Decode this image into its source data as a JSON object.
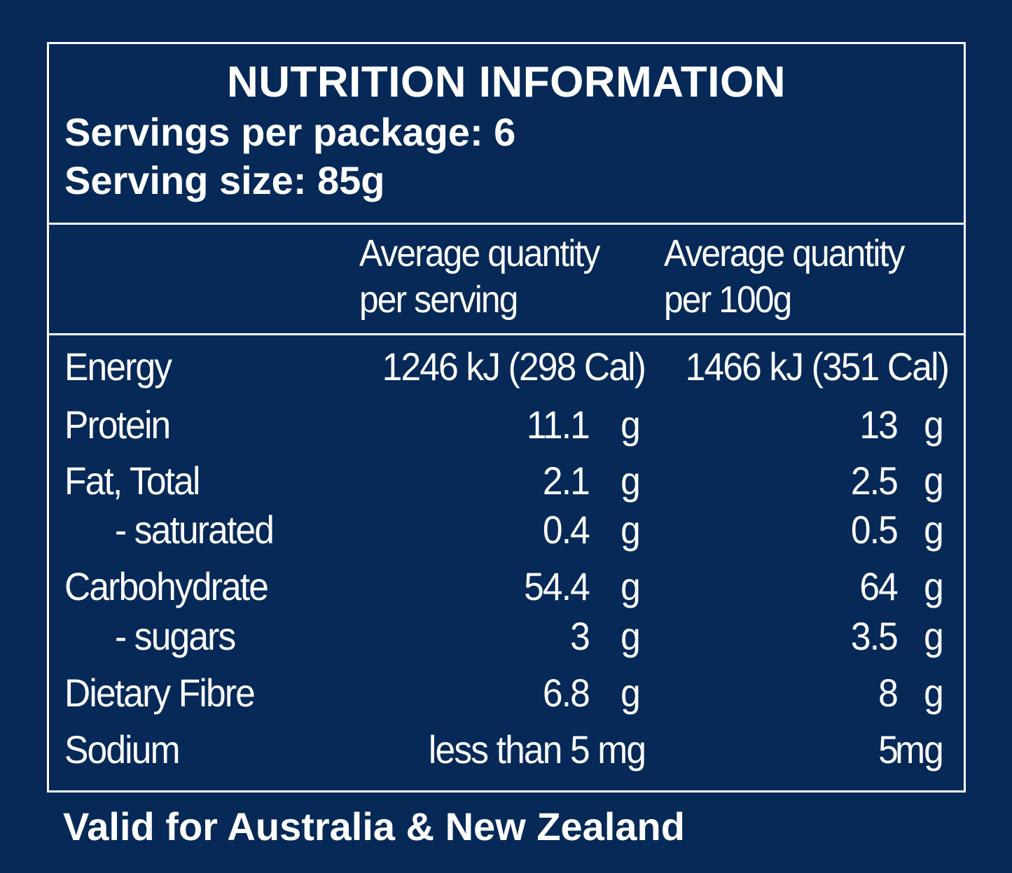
{
  "title": "NUTRITION INFORMATION",
  "servings": "Servings per package: 6",
  "serving_size": "Serving size: 85g",
  "columns": {
    "per_serving_line1": "Average quantity",
    "per_serving_line2": "per serving",
    "per_100g_line1": "Average quantity",
    "per_100g_line2": "per 100g"
  },
  "energy": {
    "label": "Energy",
    "per_serving": "1246 kJ (298 Cal)",
    "per_100g": "1466 kJ (351 Cal)"
  },
  "rows": [
    {
      "label": "Protein",
      "serving": "11.1",
      "serving_unit": "g",
      "per100": "13",
      "per100_unit": "g"
    },
    {
      "label": "Fat, Total",
      "serving": "2.1",
      "serving_unit": "g",
      "per100": "2.5",
      "per100_unit": "g"
    },
    {
      "label": "- saturated",
      "serving": "0.4",
      "serving_unit": "g",
      "per100": "0.5",
      "per100_unit": "g"
    },
    {
      "label": "Carbohydrate",
      "serving": "54.4",
      "serving_unit": "g",
      "per100": "64",
      "per100_unit": "g"
    },
    {
      "label": "- sugars",
      "serving": "3",
      "serving_unit": "g",
      "per100": "3.5",
      "per100_unit": "g"
    },
    {
      "label": "Dietary Fibre",
      "serving": "6.8",
      "serving_unit": "g",
      "per100": "8",
      "per100_unit": "g"
    }
  ],
  "sodium": {
    "label": "Sodium",
    "per_serving": "less than 5 mg",
    "per100": "5",
    "per100_unit": "mg"
  },
  "footer": "Valid for Australia & New Zealand",
  "colors": {
    "background": "#062957",
    "text": "#ffffff"
  }
}
